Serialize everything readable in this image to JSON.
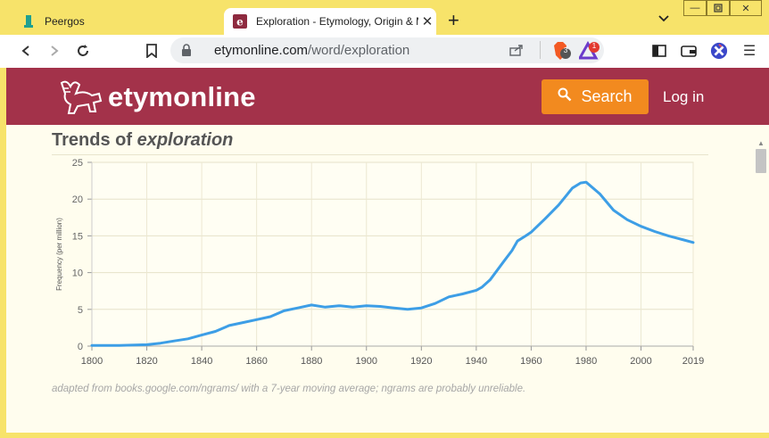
{
  "browser": {
    "tabs": [
      {
        "title": "Peergos",
        "active": false
      },
      {
        "title": "Exploration - Etymology, Origin & Meaning",
        "active": true
      }
    ],
    "address": {
      "host": "etymonline.com",
      "path": "/word/exploration"
    },
    "brave_badge": "3",
    "rewards_badge": "1"
  },
  "site": {
    "logo": "etymonline",
    "search_label": "Search",
    "login_label": "Log in"
  },
  "trends": {
    "title_prefix": "Trends of",
    "word": "exploration",
    "footnote": "adapted from books.google.com/ngrams/ with a 7-year moving average; ngrams are probably unreliable."
  },
  "chart_data": {
    "type": "line",
    "ylabel": "Frequency (per million)",
    "xlim": [
      1800,
      2019
    ],
    "ylim": [
      0,
      25
    ],
    "xticks": [
      1800,
      1820,
      1840,
      1860,
      1880,
      1900,
      1920,
      1940,
      1960,
      1980,
      2000,
      2019
    ],
    "yticks": [
      0,
      5,
      10,
      15,
      20,
      25
    ],
    "grid": true,
    "color": "#3d9ee6",
    "series": [
      {
        "x": [
          1800,
          1810,
          1820,
          1825,
          1830,
          1835,
          1840,
          1845,
          1850,
          1855,
          1860,
          1865,
          1870,
          1875,
          1880,
          1885,
          1890,
          1895,
          1900,
          1905,
          1910,
          1915,
          1920,
          1925,
          1930,
          1935,
          1940,
          1942,
          1945,
          1950,
          1953,
          1955,
          1958,
          1960,
          1965,
          1970,
          1975,
          1978,
          1980,
          1985,
          1990,
          1995,
          2000,
          2005,
          2010,
          2015,
          2019
        ],
        "y": [
          0.1,
          0.1,
          0.2,
          0.4,
          0.7,
          1.0,
          1.5,
          2.0,
          2.8,
          3.2,
          3.6,
          4.0,
          4.8,
          5.2,
          5.6,
          5.3,
          5.5,
          5.3,
          5.5,
          5.4,
          5.2,
          5.0,
          5.2,
          5.8,
          6.7,
          7.1,
          7.6,
          8.0,
          9.0,
          11.5,
          13.0,
          14.3,
          15.0,
          15.5,
          17.3,
          19.2,
          21.5,
          22.2,
          22.3,
          20.7,
          18.5,
          17.2,
          16.3,
          15.6,
          15.0,
          14.5,
          14.1
        ]
      }
    ]
  }
}
